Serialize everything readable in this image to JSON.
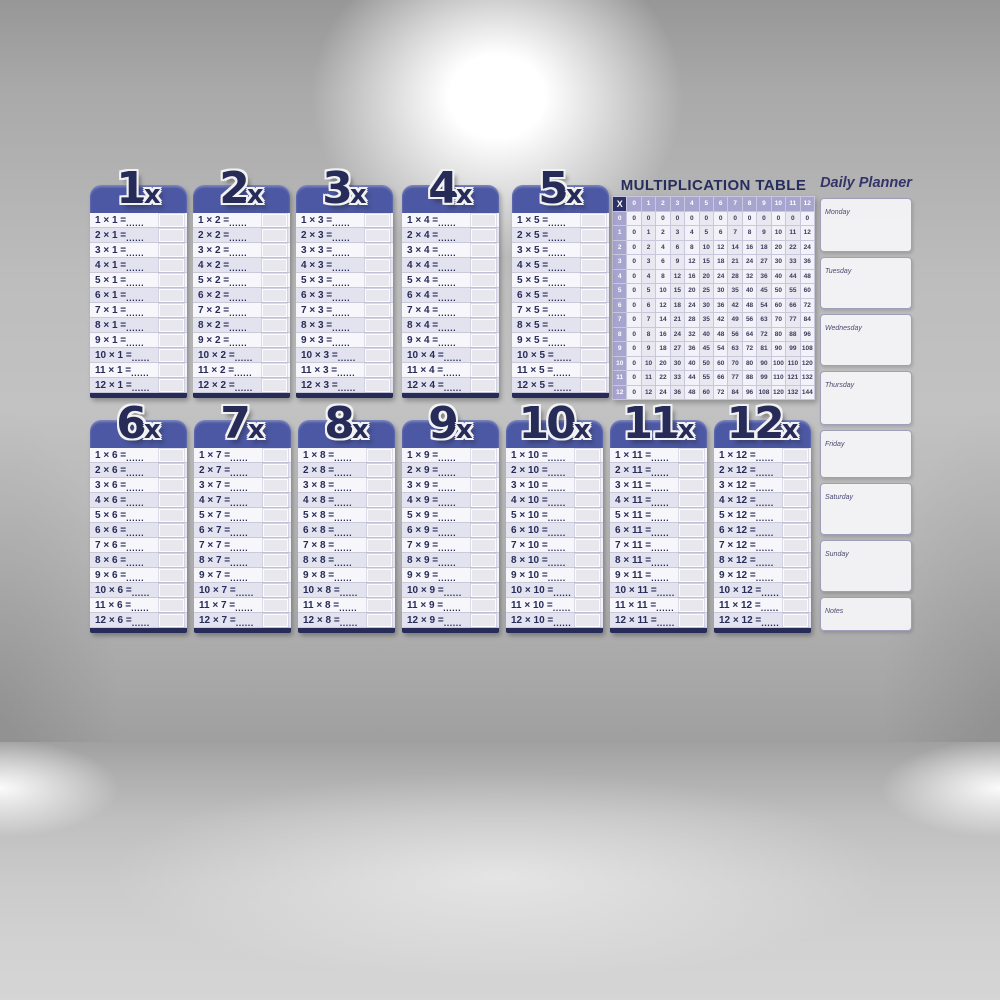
{
  "cards": {
    "suffix": "x",
    "times_symbol": "×",
    "equals_symbol": "=",
    "answer_dots": "......",
    "multiplicands": [
      "1",
      "2",
      "3",
      "4",
      "5",
      "6",
      "7",
      "8",
      "9",
      "10",
      "11",
      "12"
    ],
    "tables": [
      {
        "label": "1",
        "factor": "1"
      },
      {
        "label": "2",
        "factor": "2"
      },
      {
        "label": "3",
        "factor": "3"
      },
      {
        "label": "4",
        "factor": "4"
      },
      {
        "label": "5",
        "factor": "5"
      },
      {
        "label": "6",
        "factor": "6"
      },
      {
        "label": "7",
        "factor": "7"
      },
      {
        "label": "8",
        "factor": "8"
      },
      {
        "label": "9",
        "factor": "9"
      },
      {
        "label": "10",
        "factor": "10"
      },
      {
        "label": "11",
        "factor": "11"
      },
      {
        "label": "12",
        "factor": "12"
      }
    ]
  },
  "grid": {
    "title": "MULTIPLICATION TABLE",
    "corner": "X",
    "col_headers": [
      "0",
      "1",
      "2",
      "3",
      "4",
      "5",
      "6",
      "7",
      "8",
      "9",
      "10",
      "11",
      "12"
    ],
    "rows": [
      {
        "label": "0",
        "values": [
          "0",
          "0",
          "0",
          "0",
          "0",
          "0",
          "0",
          "0",
          "0",
          "0",
          "0",
          "0",
          "0"
        ]
      },
      {
        "label": "1",
        "values": [
          "0",
          "1",
          "2",
          "3",
          "4",
          "5",
          "6",
          "7",
          "8",
          "9",
          "10",
          "11",
          "12"
        ]
      },
      {
        "label": "2",
        "values": [
          "0",
          "2",
          "4",
          "6",
          "8",
          "10",
          "12",
          "14",
          "16",
          "18",
          "20",
          "22",
          "24"
        ]
      },
      {
        "label": "3",
        "values": [
          "0",
          "3",
          "6",
          "9",
          "12",
          "15",
          "18",
          "21",
          "24",
          "27",
          "30",
          "33",
          "36"
        ]
      },
      {
        "label": "4",
        "values": [
          "0",
          "4",
          "8",
          "12",
          "16",
          "20",
          "24",
          "28",
          "32",
          "36",
          "40",
          "44",
          "48"
        ]
      },
      {
        "label": "5",
        "values": [
          "0",
          "5",
          "10",
          "15",
          "20",
          "25",
          "30",
          "35",
          "40",
          "45",
          "50",
          "55",
          "60"
        ]
      },
      {
        "label": "6",
        "values": [
          "0",
          "6",
          "12",
          "18",
          "24",
          "30",
          "36",
          "42",
          "48",
          "54",
          "60",
          "66",
          "72"
        ]
      },
      {
        "label": "7",
        "values": [
          "0",
          "7",
          "14",
          "21",
          "28",
          "35",
          "42",
          "49",
          "56",
          "63",
          "70",
          "77",
          "84"
        ]
      },
      {
        "label": "8",
        "values": [
          "0",
          "8",
          "16",
          "24",
          "32",
          "40",
          "48",
          "56",
          "64",
          "72",
          "80",
          "88",
          "96"
        ]
      },
      {
        "label": "9",
        "values": [
          "0",
          "9",
          "18",
          "27",
          "36",
          "45",
          "54",
          "63",
          "72",
          "81",
          "90",
          "99",
          "108"
        ]
      },
      {
        "label": "10",
        "values": [
          "0",
          "10",
          "20",
          "30",
          "40",
          "50",
          "60",
          "70",
          "80",
          "90",
          "100",
          "110",
          "120"
        ]
      },
      {
        "label": "11",
        "values": [
          "0",
          "11",
          "22",
          "33",
          "44",
          "55",
          "66",
          "77",
          "88",
          "99",
          "110",
          "121",
          "132"
        ]
      },
      {
        "label": "12",
        "values": [
          "0",
          "12",
          "24",
          "36",
          "48",
          "60",
          "72",
          "84",
          "96",
          "108",
          "120",
          "132",
          "144"
        ]
      }
    ]
  },
  "planner": {
    "title": "Daily Planner",
    "sections": [
      "Monday",
      "Tuesday",
      "Wednesday",
      "Thursday",
      "Friday",
      "Saturday",
      "Sunday",
      "Notes"
    ]
  },
  "colors": {
    "card_band_blue": "#4c58a3",
    "navy": "#272b58",
    "grid_header_purple": "#a7a4cf",
    "grid_corner_navy": "#2c3166"
  }
}
